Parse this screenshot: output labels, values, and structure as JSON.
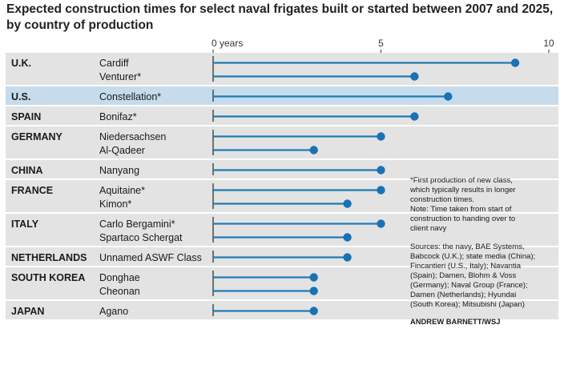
{
  "title": {
    "line1": "Expected construction times for select naval frigates built or started between 2007 and 2025,",
    "line2": "by country of production"
  },
  "chart_data": {
    "type": "bar",
    "orientation": "horizontal",
    "style": "lollipop",
    "axis_unit_label": "years",
    "xlim": [
      0,
      10
    ],
    "xticks": [
      0,
      5,
      10
    ],
    "xtick_labels": [
      "0 years",
      "5",
      "10"
    ],
    "grid": false,
    "groups": [
      {
        "country": "U.K.",
        "highlight": false,
        "ships": [
          {
            "name": "Cardiff",
            "years": 9.0
          },
          {
            "name": "Venturer*",
            "years": 6.0
          }
        ]
      },
      {
        "country": "U.S.",
        "highlight": true,
        "ships": [
          {
            "name": "Constellation*",
            "years": 7.0
          }
        ]
      },
      {
        "country": "SPAIN",
        "highlight": false,
        "ships": [
          {
            "name": "Bonifaz*",
            "years": 6.0
          }
        ]
      },
      {
        "country": "GERMANY",
        "highlight": false,
        "ships": [
          {
            "name": "Niedersachsen",
            "years": 5.0
          },
          {
            "name": "Al-Qadeer",
            "years": 3.0
          }
        ]
      },
      {
        "country": "CHINA",
        "highlight": false,
        "ships": [
          {
            "name": "Nanyang",
            "years": 5.0
          }
        ]
      },
      {
        "country": "FRANCE",
        "highlight": false,
        "ships": [
          {
            "name": "Aquitaine*",
            "years": 5.0
          },
          {
            "name": "Kimon*",
            "years": 4.0
          }
        ]
      },
      {
        "country": "ITALY",
        "highlight": false,
        "ships": [
          {
            "name": "Carlo Bergamini*",
            "years": 5.0
          },
          {
            "name": "Spartaco Schergat",
            "years": 4.0
          }
        ]
      },
      {
        "country": "NETHERLANDS",
        "highlight": false,
        "ships": [
          {
            "name": "Unnamed ASWF Class",
            "years": 4.0
          }
        ]
      },
      {
        "country": "SOUTH KOREA",
        "highlight": false,
        "ships": [
          {
            "name": "Donghae",
            "years": 3.0
          },
          {
            "name": "Cheonan",
            "years": 3.0
          }
        ]
      },
      {
        "country": "JAPAN",
        "highlight": false,
        "ships": [
          {
            "name": "Agano",
            "years": 3.0
          }
        ]
      }
    ]
  },
  "notes": {
    "footnote": [
      "*First production of new class,",
      "which typically results in longer",
      "construction times.",
      "Note: Time taken from start of",
      "construction to handing over to",
      "client navy"
    ],
    "sources": [
      "Sources: the navy, BAE Systems,",
      "Babcock (U.K.); state media (China);",
      "Fincantieri (U.S., Italy); Navantia",
      "(Spain); Damen, Blohm & Voss",
      "(Germany); Naval Group (France);",
      "Damen (Netherlands); Hyundai",
      "(South Korea); Mitsubishi (Japan)"
    ],
    "credit": "ANDREW BARNETT/WSJ"
  },
  "colors": {
    "panel_gray": "#e3e3e3",
    "highlight_blue": "#c6dcec",
    "line_blue": "#1f7ab8",
    "dot_blue": "#1a72b4",
    "separator": "#ffffff",
    "axis": "#333333",
    "text": "#1a1a1a"
  }
}
